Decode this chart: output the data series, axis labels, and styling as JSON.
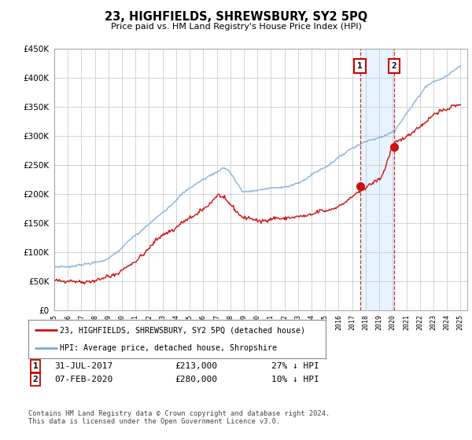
{
  "title": "23, HIGHFIELDS, SHREWSBURY, SY2 5PQ",
  "subtitle": "Price paid vs. HM Land Registry's House Price Index (HPI)",
  "ylim": [
    0,
    450000
  ],
  "xlim_start": 1995.0,
  "xlim_end": 2025.5,
  "hpi_color": "#7aabdb",
  "price_color": "#cc1111",
  "marker1_date": 2017.58,
  "marker2_date": 2020.09,
  "marker1_price": 213000,
  "marker2_price": 280000,
  "legend_line1": "23, HIGHFIELDS, SHREWSBURY, SY2 5PQ (detached house)",
  "legend_line2": "HPI: Average price, detached house, Shropshire",
  "footer": "Contains HM Land Registry data © Crown copyright and database right 2024.\nThis data is licensed under the Open Government Licence v3.0.",
  "background_color": "#ffffff",
  "grid_color": "#cccccc",
  "shade_color": "#ddeeff"
}
